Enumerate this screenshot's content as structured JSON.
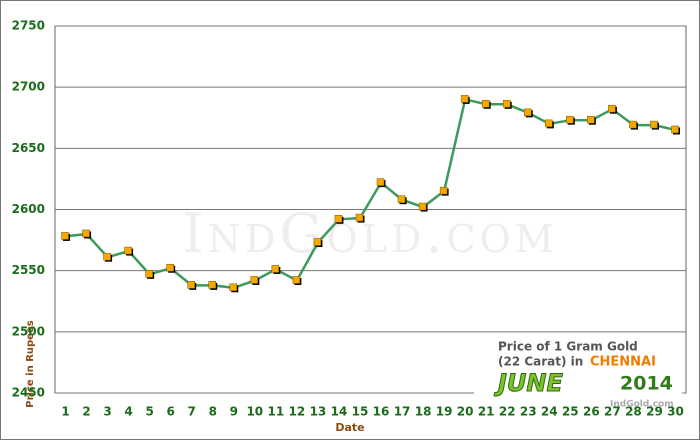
{
  "chart_data": {
    "type": "line",
    "x_label": "Date",
    "y_label": "Price in Rupees",
    "watermark": "IndGold.com",
    "annotation": {
      "line1": "Price of 1 Gram Gold",
      "line2": "(22 Carat) in",
      "city": "CHENNAI",
      "month": "JUNE",
      "year": "2014",
      "source": "IndGold.com"
    },
    "categories": [
      "1",
      "2",
      "3",
      "4",
      "5",
      "6",
      "7",
      "8",
      "9",
      "10",
      "11",
      "12",
      "13",
      "14",
      "15",
      "16",
      "17",
      "18",
      "19",
      "20",
      "21",
      "22",
      "23",
      "24",
      "25",
      "26",
      "27",
      "28",
      "29",
      "30"
    ],
    "series": [
      {
        "name": "Price",
        "color": "#3c9a5c",
        "values": [
          2578,
          2580,
          2561,
          2566,
          2547,
          2552,
          2538,
          2538,
          2536,
          2542,
          2551,
          2542,
          2573,
          2592,
          2593,
          2622,
          2608,
          2602,
          2615,
          2690,
          2686,
          2686,
          2679,
          2670,
          2673,
          2673,
          2682,
          2669,
          2669,
          2665
        ]
      }
    ],
    "marker_color": "#f5a800",
    "ylim": [
      2450,
      2750
    ],
    "yticks": [
      2450,
      2500,
      2550,
      2600,
      2650,
      2700,
      2750
    ],
    "grid": true
  }
}
